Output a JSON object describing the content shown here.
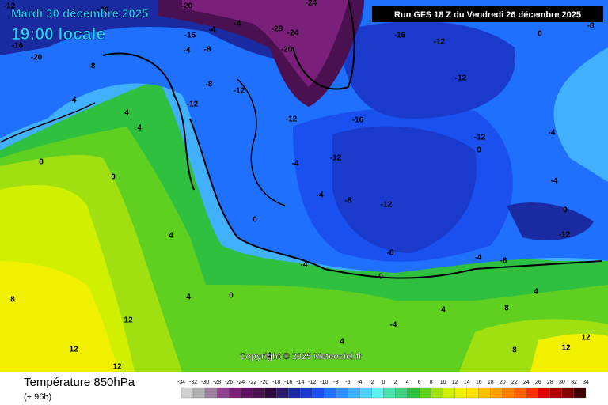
{
  "header": {
    "date": "Mardi 30 décembre 2025",
    "time": "19:00 locale",
    "run": "Run GFS 18 Z du Vendredi 26 décembre 2025"
  },
  "copyright": "Copyright © 2025 Meteociel.fr",
  "legend": {
    "title": "Température 850hPa",
    "subtitle": "(+ 96h)",
    "ticks": [
      -34,
      -32,
      -30,
      -28,
      -26,
      -24,
      -22,
      -20,
      -18,
      -16,
      -14,
      -12,
      -10,
      -8,
      -6,
      -4,
      -2,
      0,
      2,
      4,
      6,
      8,
      10,
      12,
      14,
      16,
      18,
      20,
      22,
      24,
      26,
      28,
      30,
      32,
      34
    ],
    "colors": [
      "#d0d0d0",
      "#b0b0b0",
      "#a080a0",
      "#904090",
      "#7a1f7a",
      "#601060",
      "#4a1050",
      "#300840",
      "#2a1a6a",
      "#1a2aa0",
      "#1a3acc",
      "#1a50f0",
      "#2070ff",
      "#3090ff",
      "#40b0ff",
      "#50d0ff",
      "#60f0f0",
      "#50e0b0",
      "#40d080",
      "#30c040",
      "#60d020",
      "#a0e010",
      "#d0f000",
      "#f0f000",
      "#ffe000",
      "#ffc000",
      "#ffa000",
      "#ff8000",
      "#ff6000",
      "#ff3000",
      "#e00000",
      "#b00000",
      "#800000",
      "#400000"
    ]
  },
  "map": {
    "labels": [
      "-12",
      "-16",
      "-20",
      "-20",
      "-20",
      "-16",
      "-4",
      "-4",
      "-28",
      "-24",
      "-24",
      "-20",
      "-16",
      "-12",
      "-12",
      "-8",
      "-4",
      "-4",
      "-8",
      "-8",
      "-12",
      "-12",
      "-12",
      "-16",
      "-12",
      "-12",
      "-12",
      "-8",
      "-4",
      "-4",
      "-8",
      "8",
      "4",
      "4",
      "0",
      "4",
      "0",
      "-4",
      "0",
      "0",
      "4",
      "8",
      "12",
      "12",
      "12",
      "4",
      "4",
      "-4",
      "0",
      "-4",
      "-4",
      "0",
      "-12",
      "-4",
      "-8",
      "0",
      "-8",
      "8",
      "12",
      "12",
      "4",
      "8",
      "4"
    ]
  }
}
